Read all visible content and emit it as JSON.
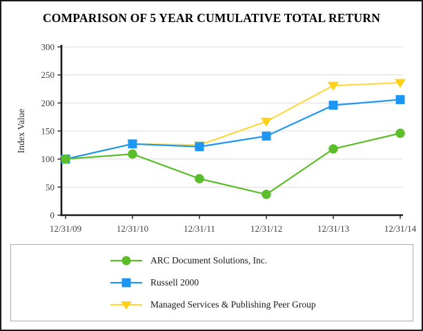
{
  "title": "COMPARISON OF 5 YEAR CUMULATIVE TOTAL RETURN",
  "chart_data": {
    "type": "line",
    "title": "COMPARISON OF 5 YEAR CUMULATIVE TOTAL RETURN",
    "xlabel": "",
    "ylabel": "Index Value",
    "x": [
      "12/31/09",
      "12/31/10",
      "12/31/11",
      "12/31/12",
      "12/31/13",
      "12/31/14"
    ],
    "ylim": [
      0,
      300
    ],
    "ytick_step": 50,
    "grid": true,
    "legend_position": "bottom-box",
    "axis_color": "#1a1a1a",
    "grid_color": "#dcdcdc",
    "tick_label_color": "#3d3d3d",
    "series": [
      {
        "name": "ARC Document Solutions, Inc.",
        "marker": "circle",
        "color": "#5cbd2a",
        "line_color": "#5cbd2a",
        "values": [
          100,
          109,
          65,
          37,
          118,
          146
        ]
      },
      {
        "name": "Russell 2000",
        "marker": "square",
        "color": "#1d96f3",
        "line_color": "#1d96f3",
        "values": [
          100,
          127,
          122,
          141,
          196,
          206
        ]
      },
      {
        "name": "Managed Services & Publishing Peer Group",
        "marker": "triangle-down",
        "color": "#ffd119",
        "line_color": "#fbd93f",
        "values": [
          100,
          127,
          125,
          167,
          231,
          236
        ]
      }
    ]
  }
}
